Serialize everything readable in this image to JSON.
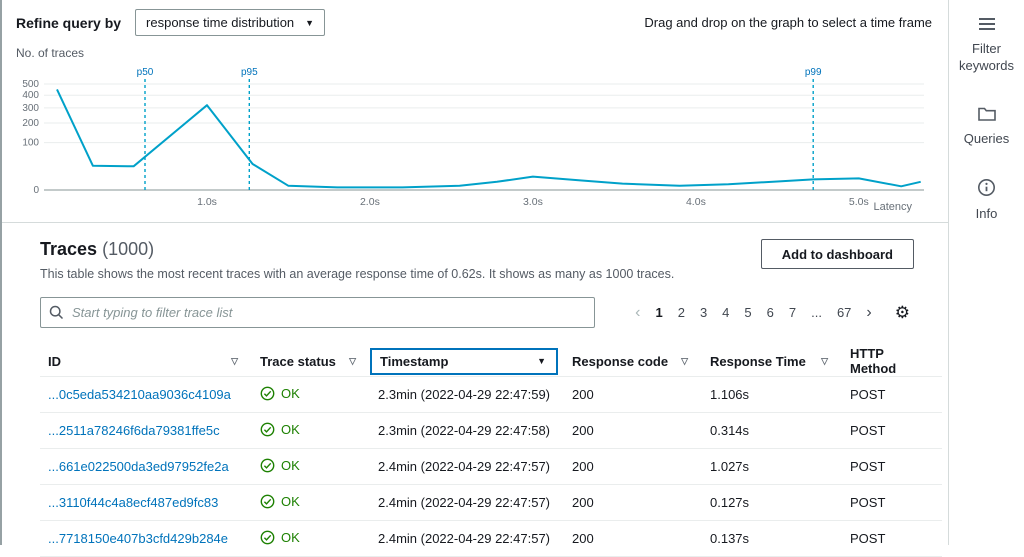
{
  "colors": {
    "link": "#0073bb",
    "ok_green": "#1d8102",
    "chart_line": "#00a1c9",
    "percentile_line": "#00a1c9",
    "percentile_label": "#0073bb",
    "selected_column_border": "#0073bb"
  },
  "icons": {
    "caret_down": "▼",
    "sort": "▽",
    "chevron_left": "‹",
    "chevron_right": "›",
    "gear": "⚙"
  },
  "refine": {
    "label": "Refine query by",
    "dropdown_value": "response time distribution",
    "drag_hint": "Drag and drop on the graph to select a time frame"
  },
  "chart_data": {
    "type": "line",
    "title": "",
    "ylabel": "No. of traces",
    "xlabel": "Latency",
    "y_scale": "sqrt",
    "ylim": [
      0,
      500
    ],
    "yticks": [
      0,
      100,
      200,
      300,
      400,
      500
    ],
    "xlim": [
      0,
      5.4
    ],
    "xticks": [
      {
        "v": 1,
        "label": "1.0s"
      },
      {
        "v": 2,
        "label": "2.0s"
      },
      {
        "v": 3,
        "label": "3.0s"
      },
      {
        "v": 4,
        "label": "4.0s"
      },
      {
        "v": 5,
        "label": "5.0s"
      }
    ],
    "series": [
      {
        "name": "traces",
        "points": [
          [
            0.08,
            450
          ],
          [
            0.3,
            26
          ],
          [
            0.55,
            25
          ],
          [
            1.0,
            320
          ],
          [
            1.28,
            30
          ],
          [
            1.5,
            0.8
          ],
          [
            1.8,
            0.3
          ],
          [
            2.2,
            0.3
          ],
          [
            2.55,
            0.8
          ],
          [
            2.78,
            3
          ],
          [
            3.0,
            8
          ],
          [
            3.3,
            4
          ],
          [
            3.55,
            1.8
          ],
          [
            3.9,
            0.8
          ],
          [
            4.2,
            1.5
          ],
          [
            4.5,
            3.2
          ],
          [
            4.72,
            5
          ],
          [
            5.0,
            6
          ],
          [
            5.26,
            0.6
          ],
          [
            5.38,
            3
          ]
        ]
      }
    ],
    "percentiles": [
      {
        "name": "p50",
        "x": 0.62
      },
      {
        "name": "p95",
        "x": 1.26
      },
      {
        "name": "p99",
        "x": 4.72
      }
    ]
  },
  "traces": {
    "title": "Traces",
    "count": "(1000)",
    "description": "This table shows the most recent traces with an average response time of 0.62s. It shows as many as 1000 traces.",
    "add_to_dashboard_label": "Add to dashboard",
    "search_placeholder": "Start typing to filter trace list",
    "pagination": {
      "pages": [
        "1",
        "2",
        "3",
        "4",
        "5",
        "6",
        "7",
        "...",
        "67"
      ],
      "current": "1"
    },
    "table": {
      "columns": [
        {
          "label": "ID"
        },
        {
          "label": "Trace status"
        },
        {
          "label": "Timestamp",
          "selected": true
        },
        {
          "label": "Response code"
        },
        {
          "label": "Response Time"
        },
        {
          "label": "HTTP Method"
        }
      ],
      "rows": [
        {
          "id": "...0c5eda534210aa9036c4109a",
          "status": "OK",
          "timestamp": "2.3min (2022-04-29 22:47:59)",
          "code": "200",
          "time": "1.106s",
          "method": "POST"
        },
        {
          "id": "...2511a78246f6da79381ffe5c",
          "status": "OK",
          "timestamp": "2.3min (2022-04-29 22:47:58)",
          "code": "200",
          "time": "0.314s",
          "method": "POST"
        },
        {
          "id": "...661e022500da3ed97952fe2a",
          "status": "OK",
          "timestamp": "2.4min (2022-04-29 22:47:57)",
          "code": "200",
          "time": "1.027s",
          "method": "POST"
        },
        {
          "id": "...3110f44c4a8ecf487ed9fc83",
          "status": "OK",
          "timestamp": "2.4min (2022-04-29 22:47:57)",
          "code": "200",
          "time": "0.127s",
          "method": "POST"
        },
        {
          "id": "...7718150e407b3cfd429b284e",
          "status": "OK",
          "timestamp": "2.4min (2022-04-29 22:47:57)",
          "code": "200",
          "time": "0.137s",
          "method": "POST"
        }
      ]
    }
  },
  "sidebar": {
    "items": [
      {
        "icon": "hamburger-icon",
        "label": "Filter keywords"
      },
      {
        "icon": "folder-icon",
        "label": "Queries"
      },
      {
        "icon": "info-icon",
        "label": "Info"
      }
    ]
  }
}
